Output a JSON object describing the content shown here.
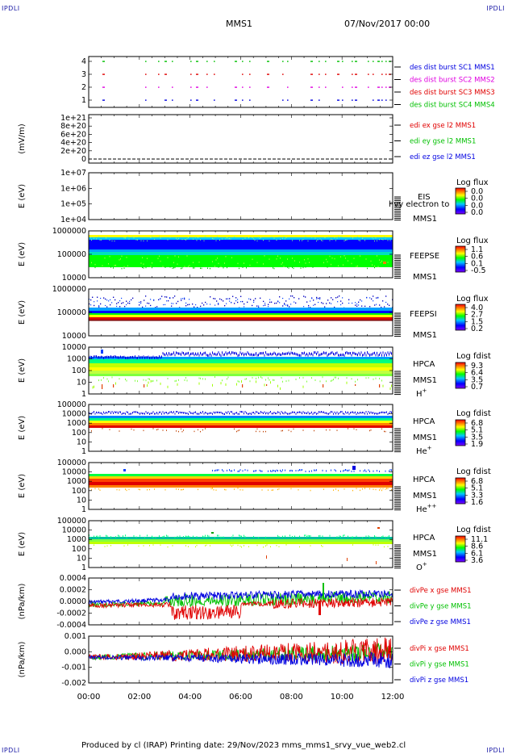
{
  "corners": {
    "tl": "IPDLI",
    "tr": "IPDLI",
    "bl": "IPDLI",
    "br": "IPDLI"
  },
  "header": {
    "mission": "MMS1",
    "date": "07/Nov/2017 00:00"
  },
  "footer": {
    "text": "Produced by cl (IRAP)   Printing date: 29/Nov/2023   mms_mms1_srvy_vue_web2.cl"
  },
  "colors": {
    "red": "#e00000",
    "green": "#00c000",
    "blue": "#0000e0",
    "magenta": "#e000e0"
  },
  "chart_data": [
    {
      "type": "scatter",
      "id": "p1",
      "yticks": [
        "4",
        "3",
        "2",
        "1"
      ],
      "legend": [
        {
          "label": "des dist burst SC1 MMS1",
          "color": "#0000e0"
        },
        {
          "label": "des dist burst SC2 MMS2",
          "color": "#e000e0"
        },
        {
          "label": "des dist burst SC3 MMS3",
          "color": "#e00000"
        },
        {
          "label": "des dist burst SC4 MMS4",
          "color": "#00c000"
        }
      ]
    },
    {
      "type": "line",
      "id": "p2",
      "ylabel": "(mV/m)",
      "yticks": [
        "1e+21",
        "8e+20",
        "6e+20",
        "4e+20",
        "2e+20",
        "0"
      ],
      "legend": [
        {
          "label": "edi ex gse l2 MMS1",
          "color": "#e00000"
        },
        {
          "label": "edi ey gse l2 MMS1",
          "color": "#00c000"
        },
        {
          "label": "edi ez gse l2 MMS1",
          "color": "#0000e0"
        }
      ]
    },
    {
      "type": "heatmap",
      "id": "p3",
      "ylabel": "E (eV)",
      "yticks": [
        "1e+07",
        "1e+06",
        "1e+05",
        "1e+04"
      ],
      "name": "EIS",
      "overlay": "hvy electron to",
      "inst": "MMS1",
      "cbtitle": "Log flux",
      "cbticks": [
        "0.0",
        "0.0",
        "0.0",
        "0.0"
      ]
    },
    {
      "type": "heatmap",
      "id": "p4",
      "ylabel": "E (eV)",
      "yticks": [
        "1000000",
        "100000",
        "10000"
      ],
      "name": "FEEPSE",
      "inst": "MMS1",
      "cbtitle": "Log flux",
      "cbticks": [
        "1.1",
        "0.6",
        "0.1",
        "-0.5"
      ]
    },
    {
      "type": "heatmap",
      "id": "p5",
      "ylabel": "E (eV)",
      "yticks": [
        "1000000",
        "100000",
        "10000"
      ],
      "name": "FEEPSI",
      "inst": "MMS1",
      "cbtitle": "Log flux",
      "cbticks": [
        "4.0",
        "2.7",
        "1.5",
        "0.2"
      ]
    },
    {
      "type": "heatmap",
      "id": "p6",
      "ylabel": "E (eV)",
      "yticks": [
        "10000",
        "1000",
        "100",
        "10",
        "1"
      ],
      "name": "HPCA",
      "inst": "MMS1",
      "ion": "H",
      "ion_sup": "+",
      "cbtitle": "Log fdist",
      "cbticks": [
        "9.3",
        "6.4",
        "3.5",
        "0.7"
      ]
    },
    {
      "type": "heatmap",
      "id": "p7",
      "ylabel": "E (eV)",
      "yticks": [
        "100000",
        "10000",
        "1000",
        "100",
        "10",
        "1"
      ],
      "name": "HPCA",
      "inst": "MMS1",
      "ion": "He",
      "ion_sup": "+",
      "cbtitle": "Log fdist",
      "cbticks": [
        "6.8",
        "5.1",
        "3.5",
        "1.9"
      ]
    },
    {
      "type": "heatmap",
      "id": "p8",
      "ylabel": "E (eV)",
      "yticks": [
        "100000",
        "10000",
        "1000",
        "100",
        "10",
        "1"
      ],
      "name": "HPCA",
      "inst": "MMS1",
      "ion": "He",
      "ion_sup": "++",
      "cbtitle": "Log fdist",
      "cbticks": [
        "6.8",
        "5.1",
        "3.3",
        "1.6"
      ]
    },
    {
      "type": "heatmap",
      "id": "p9",
      "ylabel": "E (eV)",
      "yticks": [
        "100000",
        "10000",
        "1000",
        "100",
        "10",
        "1"
      ],
      "name": "HPCA",
      "inst": "MMS1",
      "ion": "O",
      "ion_sup": "+",
      "cbtitle": "Log fdist",
      "cbticks": [
        "11.1",
        "8.6",
        "6.1",
        "3.6"
      ]
    },
    {
      "type": "line",
      "id": "p10",
      "ylabel": "(nPa/km)",
      "yticks": [
        "0.0004",
        "0.0002",
        "0.0000",
        "-0.0002",
        "-0.0004"
      ],
      "legend": [
        {
          "label": "divPe x gse MMS1",
          "color": "#e00000"
        },
        {
          "label": "divPe y gse MMS1",
          "color": "#00c000"
        },
        {
          "label": "divPe z gse MMS1",
          "color": "#0000e0"
        }
      ]
    },
    {
      "type": "line",
      "id": "p11",
      "ylabel": "(nPa/km)",
      "yticks": [
        "0.001",
        "0.000",
        "-0.001",
        "-0.002"
      ],
      "legend": [
        {
          "label": "divPi x gse MMS1",
          "color": "#e00000"
        },
        {
          "label": "divPi y gse MMS1",
          "color": "#00c000"
        },
        {
          "label": "divPi z gse MMS1",
          "color": "#0000e0"
        }
      ]
    }
  ],
  "xaxis": {
    "ticks": [
      "00:00",
      "02:00",
      "04:00",
      "06:00",
      "08:00",
      "10:00",
      "12:00"
    ]
  }
}
